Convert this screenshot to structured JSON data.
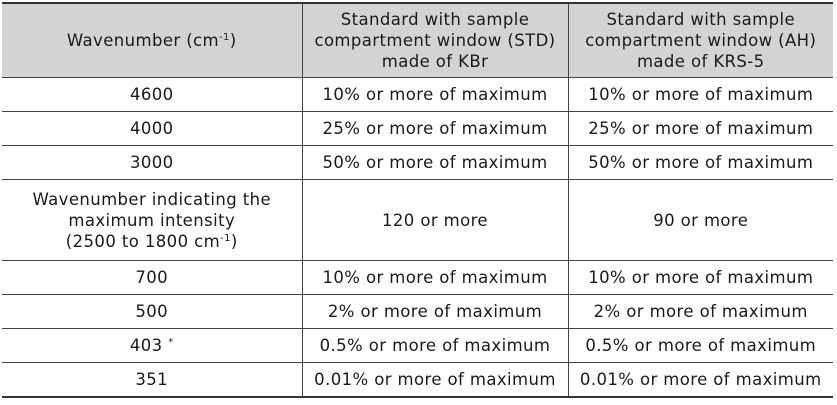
{
  "table": {
    "header": {
      "col1_text": "Wavenumber (cm",
      "col1_sup": "-1",
      "col1_close": ")",
      "col2_line1": "Standard with sample",
      "col2_line2": "compartment window (STD)",
      "col2_line3": "made of KBr",
      "col3_line1": "Standard with sample",
      "col3_line2": "compartment window (AH)",
      "col3_line3": "made of KRS-5"
    },
    "rows": [
      {
        "wavenumber": "4600",
        "std": "10% or more of maximum",
        "ah": "10% or more of maximum"
      },
      {
        "wavenumber": "4000",
        "std": "25% or more of maximum",
        "ah": "25% or more of maximum"
      },
      {
        "wavenumber": "3000",
        "std": "50% or more of maximum",
        "ah": "50% or more of maximum"
      },
      {
        "wavenumber_line1": "Wavenumber indicating the",
        "wavenumber_line2": "maximum intensity",
        "wavenumber_line3": "(2500 to 1800 cm",
        "wavenumber_sup": "-1",
        "wavenumber_close": ")",
        "std": "120 or more",
        "ah": "90 or more"
      },
      {
        "wavenumber": "700",
        "std": "10% or more of maximum",
        "ah": "10% or more of maximum"
      },
      {
        "wavenumber": "500",
        "std": "2% or more of maximum",
        "ah": "2% or more of maximum"
      },
      {
        "wavenumber": "403",
        "wavenumber_sup": "*",
        "std": "0.5% or more of maximum",
        "ah": "0.5% or more of maximum"
      },
      {
        "wavenumber": "351",
        "std": "0.01% or more of maximum",
        "ah": "0.01% or more of maximum"
      }
    ]
  }
}
